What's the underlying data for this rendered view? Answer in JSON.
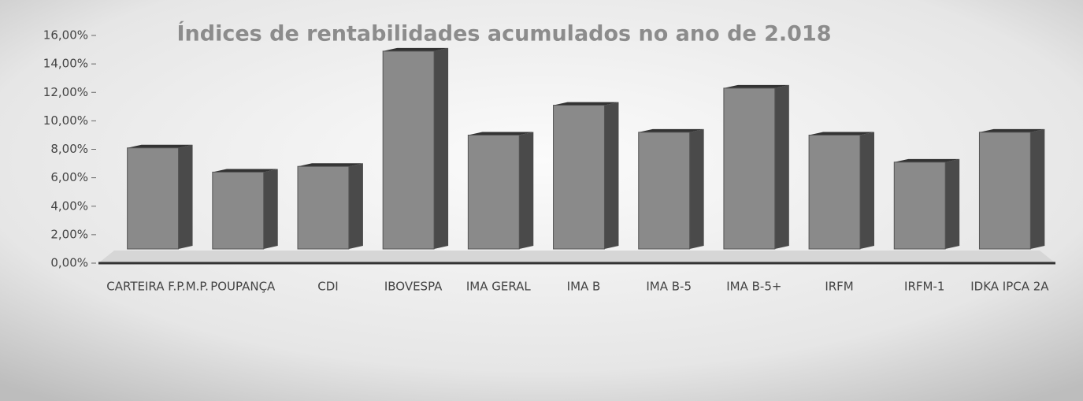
{
  "chart_data": {
    "type": "bar3d",
    "title": "Índices de rentabilidades acumulados no ano de 2.018",
    "categories": [
      "CARTEIRA F.P.M.P.",
      "POUPANÇA",
      "CDI",
      "IBOVESPA",
      "IMA GERAL",
      "IMA B",
      "IMA B-5",
      "IMA B-5+",
      "IRFM",
      "IRFM-1",
      "IDKA IPCA 2A"
    ],
    "values": [
      7.1,
      5.4,
      5.8,
      13.9,
      8.0,
      10.1,
      8.2,
      11.3,
      8.0,
      6.1,
      8.2
    ],
    "color": "#8a8a8a",
    "ylim": [
      0,
      16
    ],
    "yticks": [
      {
        "value": 0,
        "label": "0,00%"
      },
      {
        "value": 2,
        "label": "2,00%"
      },
      {
        "value": 4,
        "label": "4,00%"
      },
      {
        "value": 6,
        "label": "6,00%"
      },
      {
        "value": 8,
        "label": "8,00%"
      },
      {
        "value": 10,
        "label": "10,00%"
      },
      {
        "value": 12,
        "label": "12,00%"
      },
      {
        "value": 14,
        "label": "14,00%"
      },
      {
        "value": 16,
        "label": "16,00%"
      }
    ],
    "grid": false
  }
}
